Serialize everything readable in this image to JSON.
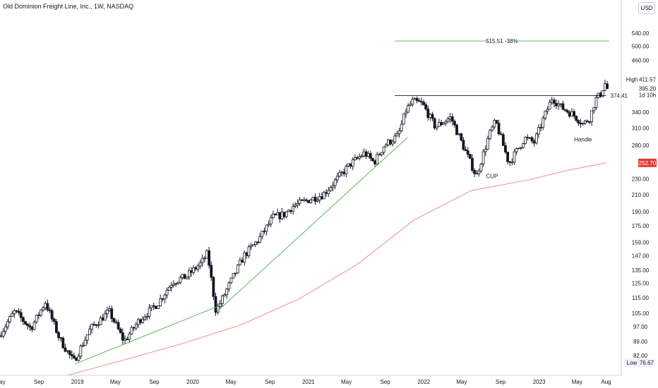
{
  "header": {
    "title": "Old Dominion Freight Line, Inc., 1W, NASDAQ"
  },
  "currency": "USD",
  "colors": {
    "up": "#131722",
    "down": "#131722",
    "upfill": "#ffffff",
    "downfill": "#131722",
    "ma": "#f28b8b",
    "trend": "#4caf50",
    "target": "#4caf50",
    "resistance": "#131722",
    "ma_label_bg": "#e53935"
  },
  "chart_data": {
    "type": "candlestick",
    "log_scale": true,
    "ylim": [
      73,
      655
    ],
    "xlim": [
      "2018-05-01",
      "2023-09-18"
    ],
    "y_ticks": [
      82,
      89,
      97,
      105,
      115,
      125,
      135,
      147,
      159,
      175,
      190,
      210,
      230,
      252.7,
      280,
      310,
      340,
      374.41,
      395.2,
      411.57,
      460,
      500,
      540
    ],
    "y_tick_labels": [
      "82.00",
      "89.00",
      "97.00",
      "105.00",
      "115.00",
      "125.00",
      "135.00",
      "147.00",
      "159.00",
      "175.00",
      "190.00",
      "210.00",
      "230.00",
      "252.70",
      "280.00",
      "310.00",
      "340.00",
      "374.41",
      "395.20",
      "411.57",
      "460.00",
      "500.00",
      "540.00"
    ],
    "x_ticks": [
      {
        "date": "2018-05-01",
        "label": "May"
      },
      {
        "date": "2018-09-01",
        "label": "Sep"
      },
      {
        "date": "2019-01-01",
        "label": "2019"
      },
      {
        "date": "2019-05-01",
        "label": "May"
      },
      {
        "date": "2019-09-01",
        "label": "Sep"
      },
      {
        "date": "2020-01-01",
        "label": "2020"
      },
      {
        "date": "2020-05-01",
        "label": "May"
      },
      {
        "date": "2020-09-01",
        "label": "Sep"
      },
      {
        "date": "2021-01-01",
        "label": "2021"
      },
      {
        "date": "2021-05-01",
        "label": "May"
      },
      {
        "date": "2021-09-01",
        "label": "Sep"
      },
      {
        "date": "2022-01-01",
        "label": "2022"
      },
      {
        "date": "2022-05-01",
        "label": "May"
      },
      {
        "date": "2022-09-01",
        "label": "Sep"
      },
      {
        "date": "2023-01-01",
        "label": "2023"
      },
      {
        "date": "2023-05-01",
        "label": "May"
      },
      {
        "date": "2023-08-01",
        "label": "Aug"
      }
    ],
    "price_path": [
      [
        "2018-05-01",
        92
      ],
      [
        "2018-06-20",
        106
      ],
      [
        "2018-08-10",
        96
      ],
      [
        "2018-09-25",
        112
      ],
      [
        "2018-11-10",
        90
      ],
      [
        "2018-12-24",
        79
      ],
      [
        "2019-02-15",
        96
      ],
      [
        "2019-04-15",
        106
      ],
      [
        "2019-06-01",
        89
      ],
      [
        "2019-07-20",
        101
      ],
      [
        "2019-09-15",
        111
      ],
      [
        "2019-11-01",
        126
      ],
      [
        "2019-12-15",
        130
      ],
      [
        "2020-02-01",
        141
      ],
      [
        "2020-02-20",
        149
      ],
      [
        "2020-03-18",
        106
      ],
      [
        "2020-05-01",
        125
      ],
      [
        "2020-06-15",
        147
      ],
      [
        "2020-08-01",
        162
      ],
      [
        "2020-09-15",
        184
      ],
      [
        "2020-10-20",
        187
      ],
      [
        "2020-11-15",
        196
      ],
      [
        "2020-12-31",
        203
      ],
      [
        "2021-02-20",
        210
      ],
      [
        "2021-04-01",
        228
      ],
      [
        "2021-05-15",
        250
      ],
      [
        "2021-07-01",
        268
      ],
      [
        "2021-07-31",
        253
      ],
      [
        "2021-09-01",
        280
      ],
      [
        "2021-10-15",
        296
      ],
      [
        "2021-11-10",
        345
      ],
      [
        "2021-12-01",
        362
      ],
      [
        "2021-12-31",
        357
      ],
      [
        "2022-02-10",
        312
      ],
      [
        "2022-03-31",
        330
      ],
      [
        "2022-05-15",
        272
      ],
      [
        "2022-06-20",
        234
      ],
      [
        "2022-08-01",
        300
      ],
      [
        "2022-08-20",
        322
      ],
      [
        "2022-10-01",
        252
      ],
      [
        "2022-11-20",
        292
      ],
      [
        "2022-12-20",
        285
      ],
      [
        "2023-01-20",
        330
      ],
      [
        "2023-02-15",
        370
      ],
      [
        "2023-03-15",
        350
      ],
      [
        "2023-04-20",
        336
      ],
      [
        "2023-05-25",
        317
      ],
      [
        "2023-06-15",
        330
      ],
      [
        "2023-07-01",
        365
      ],
      [
        "2023-07-20",
        380
      ],
      [
        "2023-07-31",
        405
      ],
      [
        "2023-08-04",
        390
      ]
    ],
    "moving_average": {
      "label": "252.70",
      "points": [
        [
          "2018-12-01",
          73
        ],
        [
          "2019-06-01",
          80
        ],
        [
          "2019-12-01",
          88
        ],
        [
          "2020-06-01",
          98
        ],
        [
          "2020-12-01",
          114
        ],
        [
          "2021-06-01",
          139
        ],
        [
          "2021-12-01",
          181
        ],
        [
          "2022-06-01",
          215
        ],
        [
          "2022-12-01",
          229
        ],
        [
          "2023-04-01",
          242
        ],
        [
          "2023-08-01",
          252.7
        ]
      ]
    },
    "trendlines": [
      {
        "from": [
          "2018-12-24",
          78
        ],
        "to": [
          "2020-03-30",
          110
        ]
      },
      {
        "from": [
          "2020-03-18",
          106
        ],
        "to": [
          "2021-11-10",
          293
        ]
      }
    ],
    "resistance": {
      "value": 374.41,
      "from": "2021-10-01",
      "to": "2023-08-01",
      "label": "374.41"
    },
    "target": {
      "value": 515.51,
      "from": "2021-10-01",
      "to": "2023-08-10",
      "label": "515.51 -38%"
    },
    "annotations": [
      {
        "text": "CUP",
        "date": "2022-08-05",
        "value": 234
      },
      {
        "text": "Handle",
        "date": "2023-05-20",
        "value": 290
      }
    ],
    "price_labels": {
      "high_label": "High",
      "high_value": "411.57",
      "current_value": "395.20",
      "countdown": "1d 10h",
      "low_label": "Low",
      "low_value": "76.67"
    }
  }
}
